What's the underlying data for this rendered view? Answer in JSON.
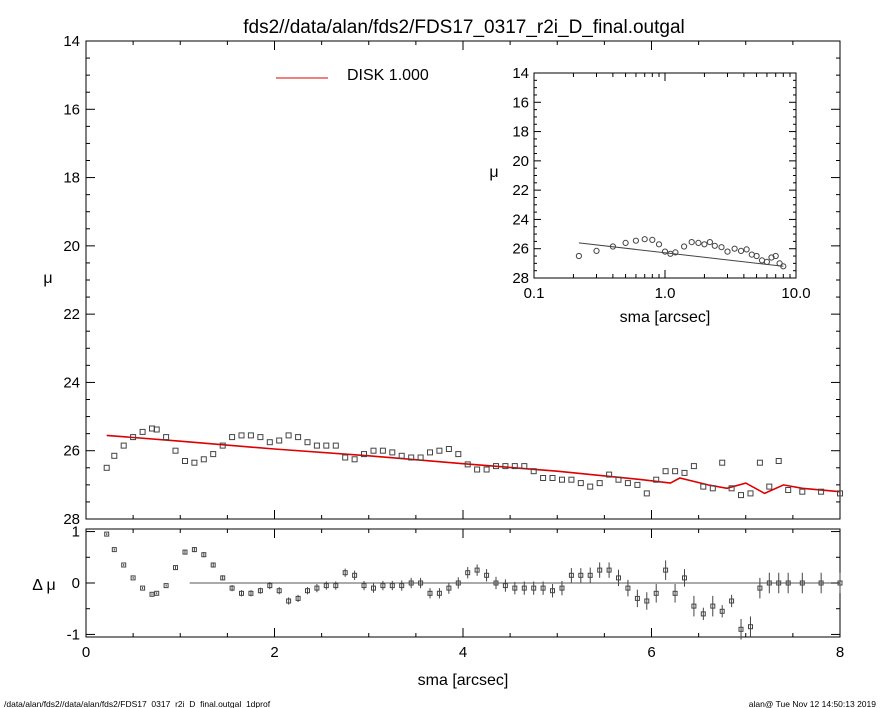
{
  "title": "fds2//data/alan/fds2/FDS17_0317_r2i_D_final.outgal",
  "footer": {
    "left": "/data/alan/fds2//data/alan/fds2/FDS17_0317_r2i_D_final.outgal_1dprof",
    "right": "alan@  Tue Nov 12 14:50:13 2019"
  },
  "colors": {
    "model": "#dd0000",
    "data": "#444444",
    "axes": "#000000"
  },
  "chart_data": [
    {
      "type": "scatter",
      "panel": "main",
      "xlabel": "sma [arcsec]",
      "ylabel": "μ",
      "xlim": [
        0,
        8
      ],
      "ylim": [
        28,
        14
      ],
      "y_inverted": true,
      "xticks": [
        "0",
        "2",
        "4",
        "6",
        "8"
      ],
      "yticks": [
        "14",
        "16",
        "18",
        "20",
        "22",
        "24",
        "26",
        "28"
      ],
      "legend": {
        "label": "DISK  1.000",
        "position": "top-center",
        "color": "#dd0000"
      },
      "series": [
        {
          "name": "DISK  1.000",
          "kind": "line",
          "color": "#dd0000",
          "x": [
            0.22,
            1.0,
            2.0,
            3.0,
            4.0,
            5.0,
            5.9,
            6.2,
            6.3,
            6.6,
            6.8,
            7.0,
            7.2,
            7.4,
            7.6,
            8.0
          ],
          "y": [
            25.55,
            25.72,
            25.95,
            26.15,
            26.38,
            26.6,
            26.85,
            26.95,
            26.8,
            27.0,
            27.1,
            26.95,
            27.25,
            27.0,
            27.1,
            27.2
          ]
        },
        {
          "kind": "points",
          "color": "#444444",
          "x": [
            0.22,
            0.3,
            0.4,
            0.5,
            0.6,
            0.7,
            0.75,
            0.85,
            0.95,
            1.05,
            1.15,
            1.25,
            1.35,
            1.45,
            1.55,
            1.65,
            1.75,
            1.85,
            1.95,
            2.05,
            2.15,
            2.25,
            2.35,
            2.45,
            2.55,
            2.65,
            2.75,
            2.85,
            2.95,
            3.05,
            3.15,
            3.25,
            3.35,
            3.45,
            3.55,
            3.65,
            3.75,
            3.85,
            3.95,
            4.05,
            4.15,
            4.25,
            4.35,
            4.45,
            4.55,
            4.65,
            4.75,
            4.85,
            4.95,
            5.05,
            5.15,
            5.25,
            5.35,
            5.45,
            5.55,
            5.65,
            5.75,
            5.85,
            5.95,
            6.05,
            6.15,
            6.25,
            6.35,
            6.45,
            6.55,
            6.65,
            6.75,
            6.85,
            6.95,
            7.05,
            7.15,
            7.25,
            7.35,
            7.45,
            7.6,
            7.8,
            8.0
          ],
          "y": [
            26.5,
            26.15,
            25.85,
            25.6,
            25.45,
            25.35,
            25.38,
            25.6,
            26.0,
            26.3,
            26.35,
            26.25,
            26.1,
            25.85,
            25.6,
            25.55,
            25.55,
            25.6,
            25.75,
            25.7,
            25.55,
            25.6,
            25.75,
            25.85,
            25.85,
            25.85,
            26.2,
            26.25,
            26.1,
            26.0,
            26.0,
            26.05,
            26.15,
            26.2,
            26.2,
            26.05,
            26.0,
            25.95,
            26.1,
            26.4,
            26.55,
            26.55,
            26.45,
            26.45,
            26.45,
            26.45,
            26.6,
            26.8,
            26.8,
            26.85,
            26.85,
            26.95,
            27.05,
            26.95,
            26.7,
            26.85,
            26.95,
            27.0,
            27.25,
            26.85,
            26.6,
            26.6,
            26.65,
            26.45,
            27.05,
            27.1,
            26.35,
            27.1,
            27.3,
            27.25,
            26.35,
            27.05,
            26.3,
            27.15,
            27.2,
            27.2,
            27.25
          ]
        }
      ]
    },
    {
      "type": "scatter",
      "panel": "inset",
      "xlabel": "sma [arcsec]",
      "ylabel": "μ",
      "x_scale": "log",
      "xlim": [
        0.1,
        10.0
      ],
      "ylim": [
        28,
        14
      ],
      "y_inverted": true,
      "xticks": [
        "0.1",
        "1.0",
        "10.0"
      ],
      "yticks": [
        "14",
        "16",
        "18",
        "20",
        "22",
        "24",
        "26",
        "28"
      ],
      "series": [
        {
          "kind": "line",
          "color": "#444444",
          "x": [
            0.22,
            8.0
          ],
          "y": [
            25.6,
            27.2
          ]
        },
        {
          "kind": "points",
          "color": "#444444",
          "x": [
            0.22,
            0.3,
            0.4,
            0.5,
            0.6,
            0.7,
            0.8,
            0.9,
            1.0,
            1.1,
            1.2,
            1.4,
            1.6,
            1.8,
            2.0,
            2.2,
            2.4,
            2.7,
            3.0,
            3.4,
            3.8,
            4.2,
            4.6,
            5.0,
            5.5,
            6.0,
            6.5,
            7.0,
            7.5,
            8.0
          ],
          "y": [
            26.5,
            26.15,
            25.85,
            25.6,
            25.45,
            25.35,
            25.4,
            25.7,
            26.2,
            26.35,
            26.25,
            25.85,
            25.55,
            25.6,
            25.7,
            25.55,
            25.8,
            25.9,
            26.2,
            26.0,
            26.15,
            26.05,
            26.4,
            26.5,
            26.8,
            26.9,
            26.6,
            26.5,
            27.0,
            27.2
          ]
        }
      ]
    },
    {
      "type": "scatter",
      "panel": "residual",
      "xlabel": "sma [arcsec]",
      "ylabel": "Δ μ",
      "xlim": [
        0,
        8
      ],
      "ylim": [
        -1.05,
        1.05
      ],
      "xticks": [
        "0",
        "2",
        "4",
        "6",
        "8"
      ],
      "yticks": [
        "-1",
        "0",
        "1"
      ],
      "zero_line": {
        "from": 1.1,
        "to": 8.0
      },
      "series": [
        {
          "kind": "points_with_errors",
          "color": "#444444",
          "x": [
            0.22,
            0.3,
            0.4,
            0.5,
            0.6,
            0.7,
            0.75,
            0.85,
            0.95,
            1.05,
            1.15,
            1.25,
            1.35,
            1.45,
            1.55,
            1.65,
            1.75,
            1.85,
            1.95,
            2.05,
            2.15,
            2.25,
            2.35,
            2.45,
            2.55,
            2.65,
            2.75,
            2.85,
            2.95,
            3.05,
            3.15,
            3.25,
            3.35,
            3.45,
            3.55,
            3.65,
            3.75,
            3.85,
            3.95,
            4.05,
            4.15,
            4.25,
            4.35,
            4.45,
            4.55,
            4.65,
            4.75,
            4.85,
            4.95,
            5.05,
            5.15,
            5.25,
            5.35,
            5.45,
            5.55,
            5.65,
            5.75,
            5.85,
            5.95,
            6.05,
            6.15,
            6.25,
            6.35,
            6.45,
            6.55,
            6.65,
            6.75,
            6.85,
            6.95,
            7.05,
            7.15,
            7.25,
            7.35,
            7.45,
            7.6,
            7.8,
            8.0
          ],
          "y": [
            0.95,
            0.65,
            0.35,
            0.1,
            -0.1,
            -0.22,
            -0.2,
            -0.05,
            0.3,
            0.6,
            0.65,
            0.55,
            0.35,
            0.1,
            -0.1,
            -0.2,
            -0.2,
            -0.15,
            -0.05,
            -0.15,
            -0.35,
            -0.3,
            -0.15,
            -0.1,
            -0.05,
            -0.05,
            0.2,
            0.15,
            -0.05,
            -0.1,
            -0.05,
            -0.05,
            -0.05,
            0.0,
            0.0,
            -0.2,
            -0.2,
            -0.1,
            0.0,
            0.2,
            0.25,
            0.15,
            0.0,
            -0.05,
            -0.1,
            -0.1,
            -0.1,
            -0.1,
            -0.15,
            -0.1,
            0.15,
            0.15,
            0.15,
            0.25,
            0.25,
            0.1,
            -0.1,
            -0.3,
            -0.35,
            -0.2,
            0.25,
            -0.2,
            0.1,
            -0.45,
            -0.6,
            -0.45,
            -0.55,
            -0.35,
            -0.9,
            -0.85,
            -0.1,
            0.0,
            0.0,
            0.0,
            0.0,
            0.0,
            0.0
          ],
          "err": [
            0.02,
            0.02,
            0.02,
            0.02,
            0.02,
            0.02,
            0.02,
            0.02,
            0.03,
            0.04,
            0.05,
            0.05,
            0.05,
            0.05,
            0.06,
            0.06,
            0.06,
            0.06,
            0.07,
            0.07,
            0.07,
            0.07,
            0.07,
            0.08,
            0.08,
            0.08,
            0.08,
            0.09,
            0.09,
            0.09,
            0.09,
            0.09,
            0.1,
            0.1,
            0.1,
            0.1,
            0.1,
            0.11,
            0.11,
            0.11,
            0.11,
            0.12,
            0.12,
            0.12,
            0.12,
            0.13,
            0.13,
            0.13,
            0.13,
            0.14,
            0.14,
            0.14,
            0.15,
            0.15,
            0.15,
            0.16,
            0.16,
            0.17,
            0.17,
            0.18,
            0.19,
            0.18,
            0.17,
            0.2,
            0.12,
            0.2,
            0.12,
            0.12,
            0.2,
            0.2,
            0.2,
            0.2,
            0.2,
            0.2,
            0.2,
            0.2,
            0.2
          ]
        }
      ]
    }
  ]
}
